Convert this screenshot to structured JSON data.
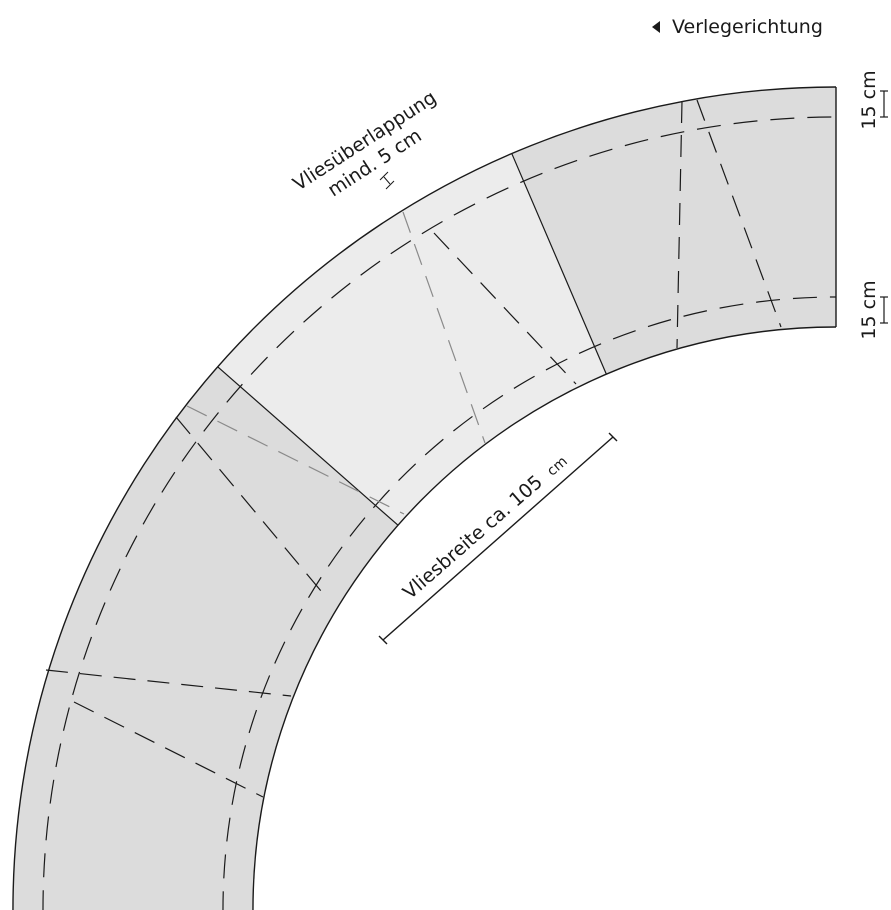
{
  "legend": {
    "direction_label": "Verlegerichtung",
    "arrow_icon": "triangle-left-icon"
  },
  "labels": {
    "overlap_line1": "Vliesüberlappung",
    "overlap_line2": "mind. 5 cm",
    "width_label_main": "Vliesbreite ca. 105",
    "width_label_unit": "cm",
    "edge_top": "15 cm",
    "edge_bottom": "15 cm"
  },
  "colors": {
    "band_dark": "#dcdcdc",
    "band_light": "#ececec",
    "stroke": "#1a1a1a",
    "stroke_gray": "#8a8a8a"
  }
}
